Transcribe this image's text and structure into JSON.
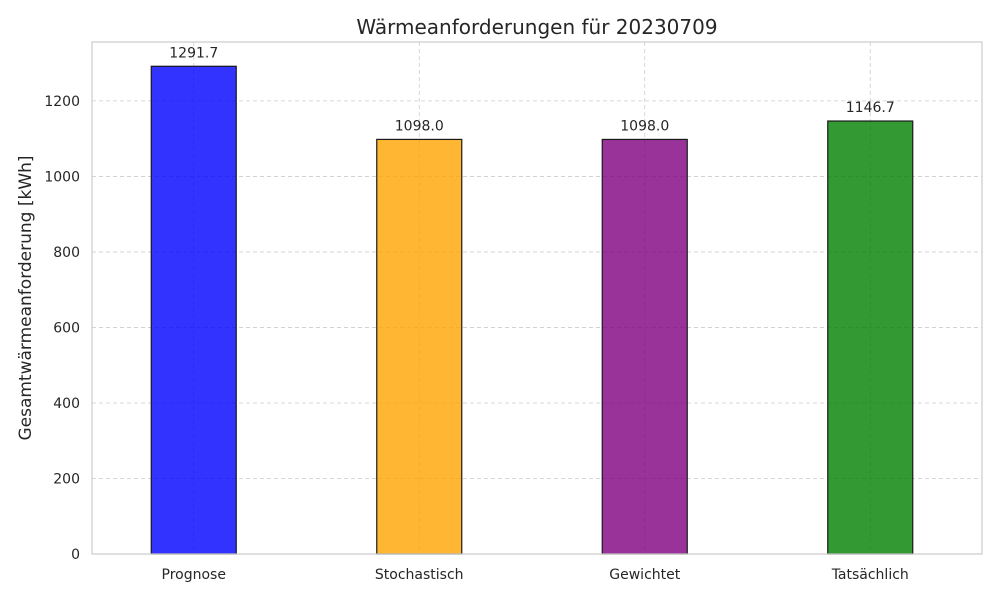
{
  "chart_data": {
    "type": "bar",
    "title": "Wärmeanforderungen für 20230709",
    "xlabel": "",
    "ylabel": "Gesamtwärmeanforderung [kWh]",
    "categories": [
      "Prognose",
      "Stochastisch",
      "Gewichtet",
      "Tatsächlich"
    ],
    "values": [
      1291.7,
      1098.0,
      1098.0,
      1146.7
    ],
    "value_labels": [
      "1291.7",
      "1098.0",
      "1098.0",
      "1146.7"
    ],
    "colors": [
      "#0000ff",
      "#ffa500",
      "#800080",
      "#008000"
    ],
    "ylim": [
      0,
      1356
    ],
    "yticks": [
      0,
      200,
      400,
      600,
      800,
      1000,
      1200
    ],
    "grid": true,
    "legend": "none"
  }
}
